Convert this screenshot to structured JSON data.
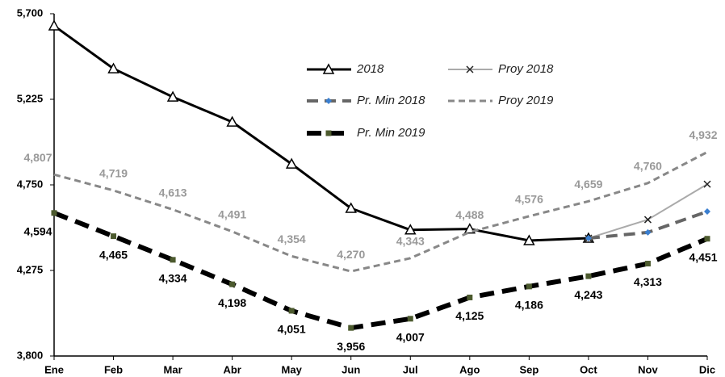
{
  "chart_data": {
    "type": "line",
    "categories": [
      "Ene",
      "Feb",
      "Mar",
      "Abr",
      "May",
      "Jun",
      "Jul",
      "Ago",
      "Sep",
      "Oct",
      "Nov",
      "Dic"
    ],
    "ylim": [
      3800,
      5700
    ],
    "yticks": [
      {
        "value": 3800,
        "label": "3,800"
      },
      {
        "value": 4275,
        "label": "4,275"
      },
      {
        "value": 4750,
        "label": "4,750"
      },
      {
        "value": 5225,
        "label": "5,225"
      },
      {
        "value": 5700,
        "label": "5,700"
      }
    ],
    "series": [
      {
        "name": "2018",
        "color": "#000000",
        "marker": "triangle",
        "dash": "solid",
        "values": [
          5633,
          5395,
          5238,
          5099,
          4866,
          4620,
          4500,
          4505,
          4441,
          4454,
          null,
          null
        ]
      },
      {
        "name": "Proy 2018",
        "color": "#aaaaaa",
        "marker": "x",
        "dash": "solid",
        "values": [
          null,
          null,
          null,
          null,
          null,
          null,
          null,
          null,
          null,
          4454,
          4557,
          4754
        ]
      },
      {
        "name": "Pr. Min 2018",
        "color": "#666666",
        "marker": "diamond",
        "dash": "dashed",
        "values": [
          null,
          null,
          null,
          null,
          null,
          null,
          null,
          null,
          null,
          4454,
          4486,
          4602
        ]
      },
      {
        "name": "Proy 2019",
        "color": "#888888",
        "marker": "none",
        "dash": "dashed",
        "values": [
          4807,
          4719,
          4613,
          4491,
          4354,
          4270,
          4343,
          4488,
          4576,
          4659,
          4760,
          4932
        ],
        "value_labels": [
          "4,807",
          "4,719",
          "4,613",
          "4,491",
          "4,354",
          "4,270",
          "4,343",
          "4,488",
          "4,576",
          "4,659",
          "4,760",
          "4,932"
        ]
      },
      {
        "name": "Pr. Min 2019",
        "color": "#000000",
        "marker": "square",
        "dash": "dashed",
        "values": [
          4594,
          4465,
          4334,
          4198,
          4051,
          3956,
          4007,
          4125,
          4186,
          4243,
          4313,
          4451
        ],
        "value_labels": [
          "4,594",
          "4,465",
          "4,334",
          "4,198",
          "4,051",
          "3,956",
          "4,007",
          "4,125",
          "4,186",
          "4,243",
          "4,313",
          "4,451"
        ]
      }
    ]
  }
}
